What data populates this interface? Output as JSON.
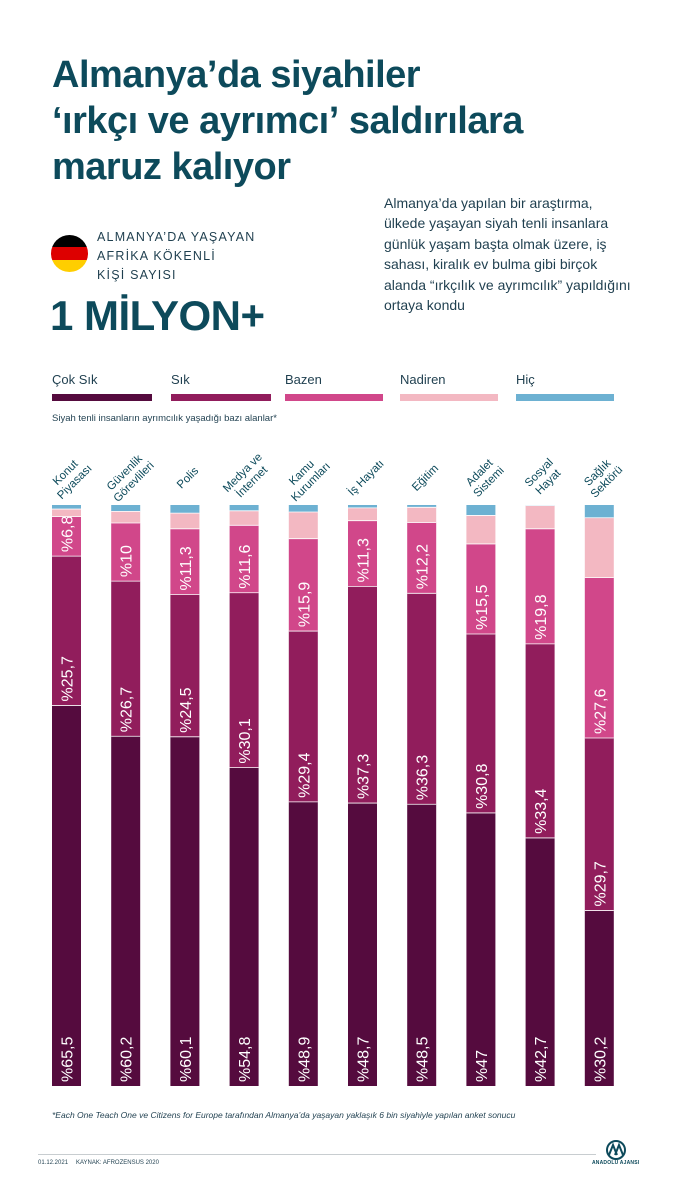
{
  "title": {
    "line1_bold": "Almanya’da",
    "line1_rest": " siyahiler",
    "line2_bold": "‘ırkçı ve ayrımcı’",
    "line2_rest": " saldırılara",
    "line3": "maruz kalıyor"
  },
  "population": {
    "label_line1": "ALMANYA’DA YAŞAYAN",
    "label_line2": "AFRİKA KÖKENLİ",
    "label_line3": "KİŞİ SAYISI",
    "value": "1 MİLYON+"
  },
  "intro": "Almanya’da yapılan bir araştırma, ülkede yaşayan siyah tenli insanlara günlük yaşam başta olmak üzere, iş sahası, kiralık ev bulma gibi birçok alanda “ırkçılık ve ayrımcılık” yapıldığını ortaya kondu",
  "colors": {
    "cok_sik": "#550b3e",
    "sik": "#911d5c",
    "bazen": "#d1478a",
    "nadiren": "#f3b8c2",
    "hic": "#6db1d2",
    "title": "#0d4a5b"
  },
  "chart_data": {
    "type": "bar",
    "stacked": true,
    "orientation": "vertical",
    "subtitle": "Siyah tenli insanların ayrımcılık yaşadığı bazı alanlar*",
    "unit": "%",
    "ylim": [
      0,
      100
    ],
    "categories": [
      "Konut\nPiyasası",
      "Güvenlik\nGörevlileri",
      "Polis",
      "Medya ve\nİnternet",
      "Kamu\nKurumları",
      "İş Hayatı",
      "Eğitim",
      "Adalet\nSistemi",
      "Sosyal\nHayat",
      "Sağlık\nSektörü"
    ],
    "series": [
      {
        "name": "Çok Sık",
        "values": [
          65.5,
          60.2,
          60.1,
          54.8,
          48.9,
          48.7,
          48.5,
          47,
          42.7,
          30.2
        ],
        "labels": [
          "%65,5",
          "%60,2",
          "%60,1",
          "%54,8",
          "%48,9",
          "%48,7",
          "%48,5",
          "%47",
          "%42,7",
          "%30,2"
        ]
      },
      {
        "name": "Sık",
        "values": [
          25.7,
          26.7,
          24.5,
          30.1,
          29.4,
          37.3,
          36.3,
          30.8,
          33.4,
          29.7
        ],
        "labels": [
          "%25,7",
          "%26,7",
          "%24,5",
          "%30,1",
          "%29,4",
          "%37,3",
          "%36,3",
          "%30,8",
          "%33,4",
          "%29,7"
        ]
      },
      {
        "name": "Bazen",
        "values": [
          6.8,
          10,
          11.3,
          11.6,
          15.9,
          11.3,
          12.2,
          15.5,
          19.8,
          27.6
        ],
        "labels": [
          "%6,8",
          "%10",
          "%11,3",
          "%11,6",
          "%15,9",
          "%11,3",
          "%12,2",
          "%15,5",
          "%19,8",
          "%27,6"
        ]
      },
      {
        "name": "Nadiren",
        "values": [
          1.3,
          2.0,
          2.7,
          2.5,
          4.6,
          2.2,
          2.6,
          4.9,
          4.0,
          10.3
        ]
      },
      {
        "name": "Hiç",
        "values": [
          0.7,
          1.1,
          1.4,
          1.0,
          1.2,
          0.5,
          0.4,
          1.8,
          0.1,
          2.2
        ]
      }
    ]
  },
  "footnote": "*Each One Teach One ve Citizens for Europe tarafından Almanya’da yaşayan yaklaşık 6 bin siyahiyle yapılan anket sonucu",
  "footer": {
    "date": "01.12.2021",
    "source": "KAYNAK: AFROZENSUS 2020",
    "agency": "ANADOLU AJANSI"
  }
}
